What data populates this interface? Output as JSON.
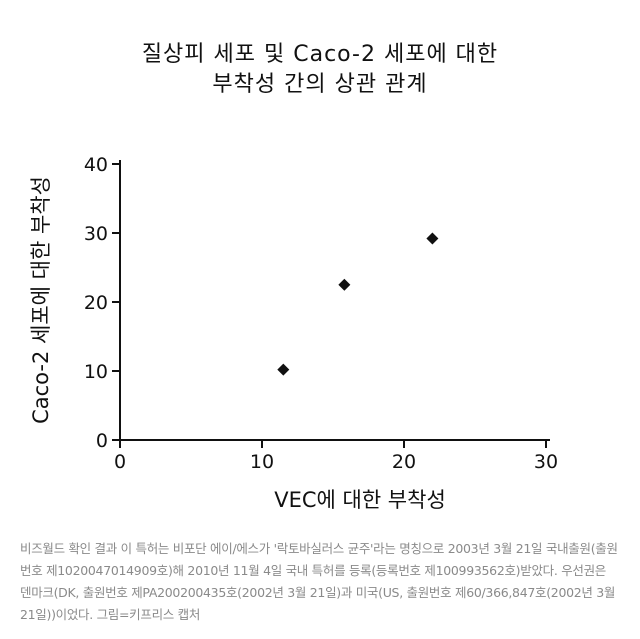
{
  "chart_data": {
    "type": "scatter",
    "title_line1": "질상피 세포 및 Caco-2 세포에 대한",
    "title_line2": "부착성 간의 상관 관계",
    "xlabel": "VEC에 대한 부착성",
    "ylabel": "Caco-2 세포에 대한 부착성",
    "xlim": [
      0,
      30
    ],
    "ylim": [
      0,
      40
    ],
    "xticks": [
      "0",
      "10",
      "20",
      "30"
    ],
    "yticks": [
      "0",
      "10",
      "20",
      "30",
      "40"
    ],
    "points": [
      {
        "x": 11.5,
        "y": 10.2
      },
      {
        "x": 15.8,
        "y": 22.5
      },
      {
        "x": 22.0,
        "y": 29.2
      }
    ],
    "marker": "diamond",
    "color": "#111111"
  },
  "caption": "비즈월드 확인 결과 이 특허는 비포단 에이/에스가 '락토바실러스 균주'라는 명칭으로 2003년 3월 21일 국내출원(출원번호 제1020047014909호)해 2010년 11월 4일 국내 특허를 등록(등록번호 제100993562호)받았다. 우선권은 덴마크(DK, 출원번호 제PA200200435호(2002년 3월 21일)과 미국(US, 출원번호 제60/366,847호(2002년 3월 21일))이었다. 그림=키프리스 캡처"
}
